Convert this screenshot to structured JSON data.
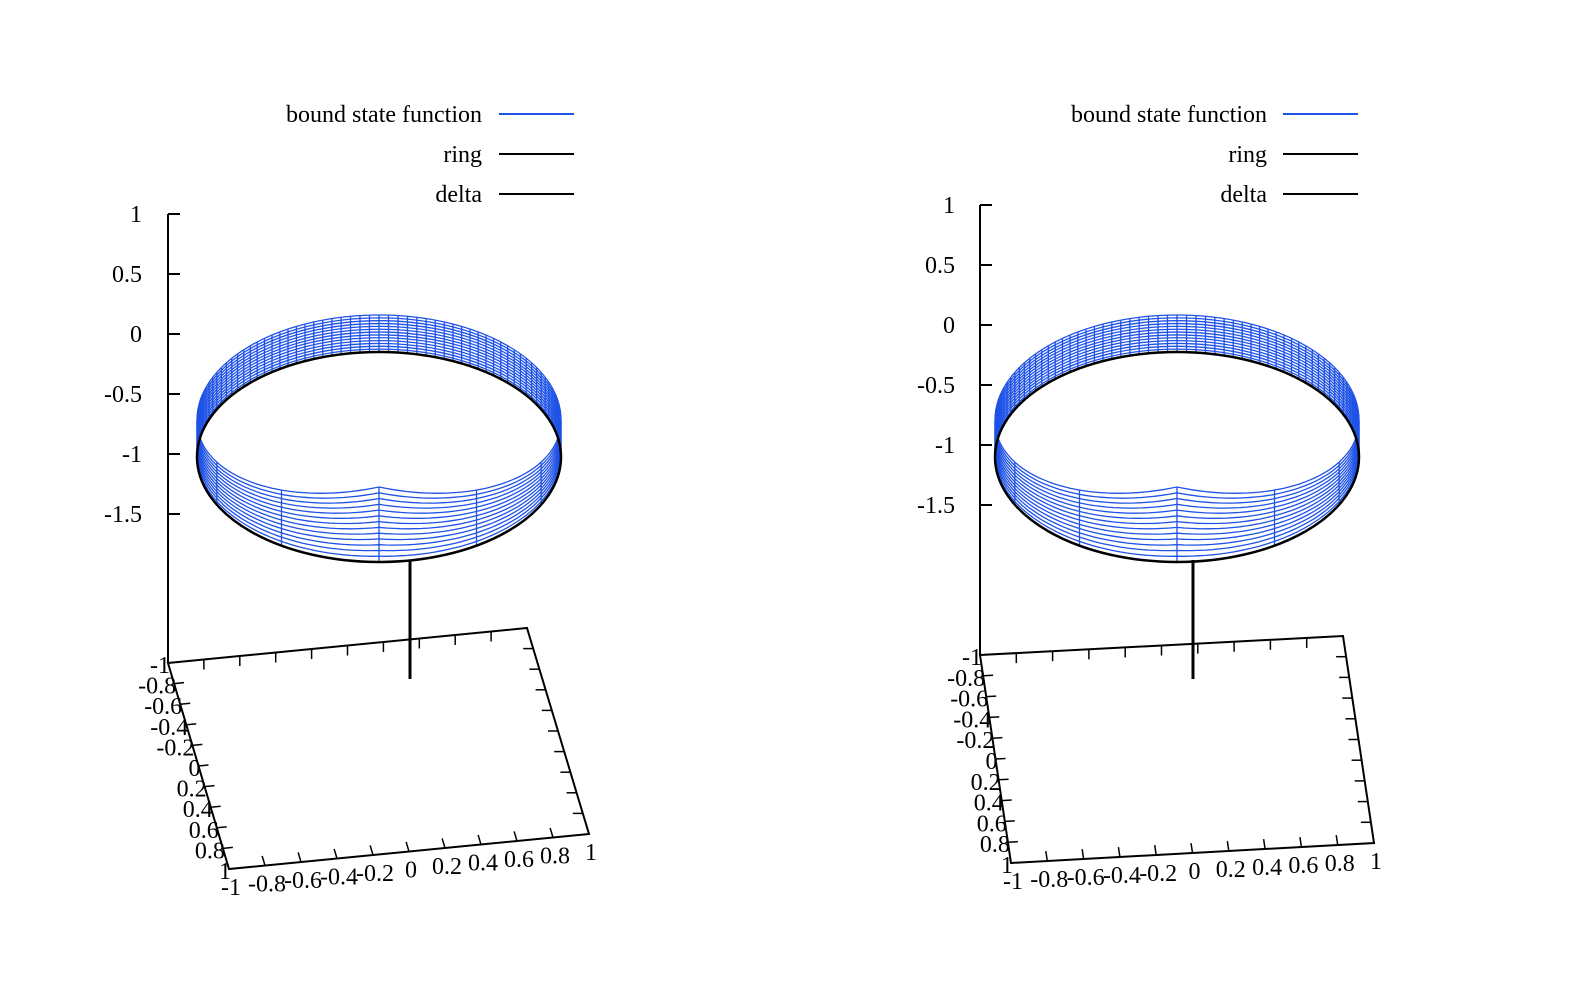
{
  "colors": {
    "bound_state": "#1f52e6",
    "ring": "#000000",
    "delta": "#000000",
    "axes": "#000000"
  },
  "chart_data": [
    {
      "type": "surface3d",
      "legend": [
        "bound state function",
        "ring",
        "delta"
      ],
      "legend_position": "top-right",
      "series": [
        {
          "name": "bound state function",
          "description_values": {
            "ring_radius": 1,
            "z_top": -0.85,
            "z_bottom": -1.87,
            "cusp_z_top": -0.78
          }
        },
        {
          "name": "ring",
          "values": {
            "radius": 1,
            "z": -1.87
          }
        },
        {
          "name": "delta",
          "values": {
            "x": 0,
            "y": 0,
            "z_from": -1.87,
            "z_to": -2.4
          }
        }
      ],
      "zticks": [
        "1",
        "0.5",
        "0",
        "-0.5",
        "-1",
        "-1.5"
      ],
      "zlim": [
        -2.4,
        1
      ],
      "xticks": [
        "-1",
        "-0.8",
        "-0.6",
        "-0.4",
        "-0.2",
        "0",
        "0.2",
        "0.4",
        "0.6",
        "0.8",
        "1"
      ],
      "yticks": [
        "-1",
        "-0.8",
        "-0.6",
        "-0.4",
        "-0.2",
        "0",
        "0.2",
        "0.4",
        "0.6",
        "0.8",
        "1"
      ],
      "xlim": [
        -1,
        1
      ],
      "ylim": [
        -1,
        1
      ]
    },
    {
      "type": "surface3d",
      "legend": [
        "bound state function",
        "ring",
        "delta"
      ],
      "legend_position": "top-right",
      "series": [
        {
          "name": "bound state function",
          "description_values": {
            "ring_radius": 1,
            "z_top": -0.85,
            "z_bottom": -1.87,
            "cusp_z_top": -0.78
          }
        },
        {
          "name": "ring",
          "values": {
            "radius": 1,
            "z": -1.87
          }
        },
        {
          "name": "delta",
          "values": {
            "x": 0,
            "y": 0,
            "z_from": -1.87,
            "z_to": -2.4
          }
        }
      ],
      "zticks": [
        "1",
        "0.5",
        "0",
        "-0.5",
        "-1",
        "-1.5"
      ],
      "zlim": [
        -2.4,
        1
      ],
      "xticks": [
        "-1",
        "-0.8",
        "-0.6",
        "-0.4",
        "-0.2",
        "0",
        "0.2",
        "0.4",
        "0.6",
        "0.8",
        "1"
      ],
      "yticks": [
        "-1",
        "-0.8",
        "-0.6",
        "-0.4",
        "-0.2",
        "0",
        "0.2",
        "0.4",
        "0.6",
        "0.8",
        "1"
      ],
      "xlim": [
        -1,
        1
      ],
      "ylim": [
        -1,
        1
      ]
    }
  ]
}
